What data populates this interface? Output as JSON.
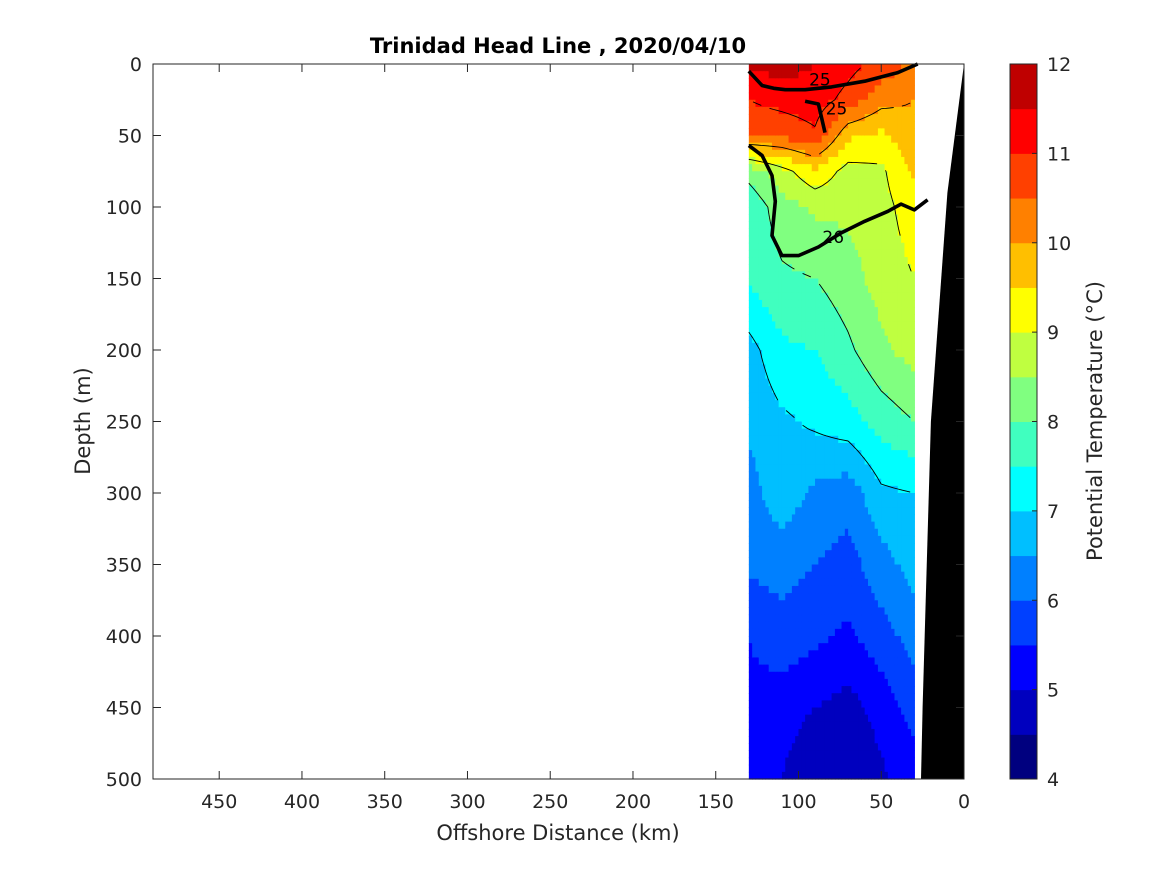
{
  "chart_data": {
    "type": "heatmap",
    "title": "Trinidad Head Line , 2020/04/10",
    "xlabel": "Offshore Distance (km)",
    "ylabel": "Depth (m)",
    "xlim": [
      490,
      0
    ],
    "ylim": [
      0,
      500
    ],
    "x_reversed": true,
    "y_reversed": true,
    "x_ticks": [
      450,
      400,
      350,
      300,
      250,
      200,
      150,
      100,
      50,
      0
    ],
    "y_ticks": [
      0,
      50,
      100,
      150,
      200,
      250,
      300,
      350,
      400,
      450,
      500
    ],
    "colorbar": {
      "label": "Potential Temperature (°C)",
      "range": [
        4,
        12
      ],
      "ticks": [
        4,
        5,
        6,
        7,
        8,
        9,
        10,
        11,
        12
      ],
      "levels": [
        {
          "lo": 4.0,
          "color": "#00007f"
        },
        {
          "lo": 4.5,
          "color": "#0000bf"
        },
        {
          "lo": 5.0,
          "color": "#0000ff"
        },
        {
          "lo": 5.5,
          "color": "#0040ff"
        },
        {
          "lo": 6.0,
          "color": "#0080ff"
        },
        {
          "lo": 6.5,
          "color": "#00bfff"
        },
        {
          "lo": 7.0,
          "color": "#00ffff"
        },
        {
          "lo": 7.5,
          "color": "#40ffbf"
        },
        {
          "lo": 8.0,
          "color": "#80ff80"
        },
        {
          "lo": 8.5,
          "color": "#bfff40"
        },
        {
          "lo": 9.0,
          "color": "#ffff00"
        },
        {
          "lo": 9.5,
          "color": "#ffbf00"
        },
        {
          "lo": 10.0,
          "color": "#ff8000"
        },
        {
          "lo": 10.5,
          "color": "#ff4000"
        },
        {
          "lo": 11.0,
          "color": "#ff0000"
        },
        {
          "lo": 11.5,
          "color": "#bf0000"
        }
      ]
    },
    "data_extent_km": [
      130,
      30
    ],
    "bathymetry": [
      [
        0,
        0
      ],
      [
        10,
        90
      ],
      [
        20,
        250
      ],
      [
        25,
        450
      ],
      [
        26,
        500
      ]
    ],
    "grid_x_km": [
      130,
      110,
      90,
      70,
      50,
      30
    ],
    "grid_depth_m": [
      0,
      25,
      50,
      75,
      100,
      150,
      200,
      250,
      300,
      350,
      400,
      450,
      500
    ],
    "temperature": [
      [
        11.6,
        11.7,
        11.5,
        11.2,
        10.8,
        10.4
      ],
      [
        11.0,
        11.2,
        11.3,
        10.8,
        10.2,
        10.0
      ],
      [
        10.6,
        10.6,
        10.9,
        9.6,
        9.4,
        9.8
      ],
      [
        8.2,
        8.8,
        9.4,
        8.8,
        8.9,
        9.6
      ],
      [
        7.6,
        8.3,
        8.6,
        8.6,
        8.8,
        9.3
      ],
      [
        7.6,
        7.9,
        8.0,
        8.3,
        8.7,
        9.0
      ],
      [
        6.8,
        7.4,
        7.5,
        7.9,
        8.4,
        8.7
      ],
      [
        6.6,
        6.9,
        7.1,
        7.3,
        7.7,
        8.0
      ],
      [
        6.3,
        6.8,
        6.4,
        6.2,
        6.9,
        7.0
      ],
      [
        6.1,
        6.2,
        6.0,
        5.8,
        6.3,
        6.7
      ],
      [
        5.5,
        5.8,
        5.6,
        5.4,
        5.8,
        6.2
      ],
      [
        5.4,
        5.2,
        5.0,
        4.8,
        5.2,
        5.7
      ],
      [
        5.3,
        5.0,
        4.6,
        4.5,
        4.9,
        5.3
      ]
    ],
    "density_contours": [
      {
        "label": "25",
        "path": [
          [
            130,
            5
          ],
          [
            122,
            15
          ],
          [
            115,
            17
          ],
          [
            108,
            18
          ],
          [
            96,
            18
          ],
          [
            80,
            16
          ],
          [
            60,
            12
          ],
          [
            40,
            6
          ],
          [
            28,
            0
          ]
        ]
      },
      {
        "label": "25",
        "path": [
          [
            96,
            26
          ],
          [
            88,
            28
          ],
          [
            86,
            38
          ],
          [
            84,
            48
          ]
        ]
      },
      {
        "label": "26",
        "path": [
          [
            130,
            57
          ],
          [
            122,
            64
          ],
          [
            116,
            78
          ],
          [
            114,
            96
          ],
          [
            116,
            120
          ],
          [
            110,
            134
          ],
          [
            100,
            134
          ],
          [
            88,
            128
          ],
          [
            74,
            118
          ],
          [
            60,
            110
          ],
          [
            46,
            103
          ],
          [
            38,
            98
          ],
          [
            30,
            102
          ],
          [
            22,
            95
          ]
        ]
      }
    ]
  }
}
